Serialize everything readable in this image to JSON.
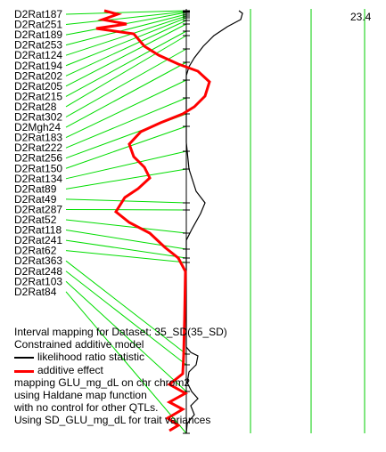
{
  "chart_data": {
    "type": "line",
    "markers": [
      "D2Rat187",
      "D2Rat251",
      "D2Rat189",
      "D2Rat253",
      "D2Rat124",
      "D2Rat194",
      "D2Rat202",
      "D2Rat205",
      "D2Rat215",
      "D2Rat28",
      "D2Rat302",
      "D2Mgh24",
      "D2Rat183",
      "D2Rat222",
      "D2Rat256",
      "D2Rat150",
      "D2Rat134",
      "D2Rat89",
      "D2Rat49",
      "D2Rat287",
      "D2Rat52",
      "D2Rat118",
      "D2Rat241",
      "D2Rat62",
      "D2Rat363",
      "D2Rat248",
      "D2Rat103",
      "D2Rat84"
    ],
    "threshold_label": "23.4",
    "legend": {
      "title": "Interval mapping for Dataset: 35_SD(35_SD)",
      "subtitle": "Constrained additive model",
      "series": [
        {
          "name": "likelihood ratio statistic",
          "color": "#000000"
        },
        {
          "name": "additive effect",
          "color": "#ff0000"
        }
      ],
      "notes": [
        "mapping GLU_mg_dL on chr chrom2",
        "using Haldane map function",
        "with no control for other QTLs.",
        "Using SD_GLU_mg_dL for trait variances"
      ]
    }
  }
}
